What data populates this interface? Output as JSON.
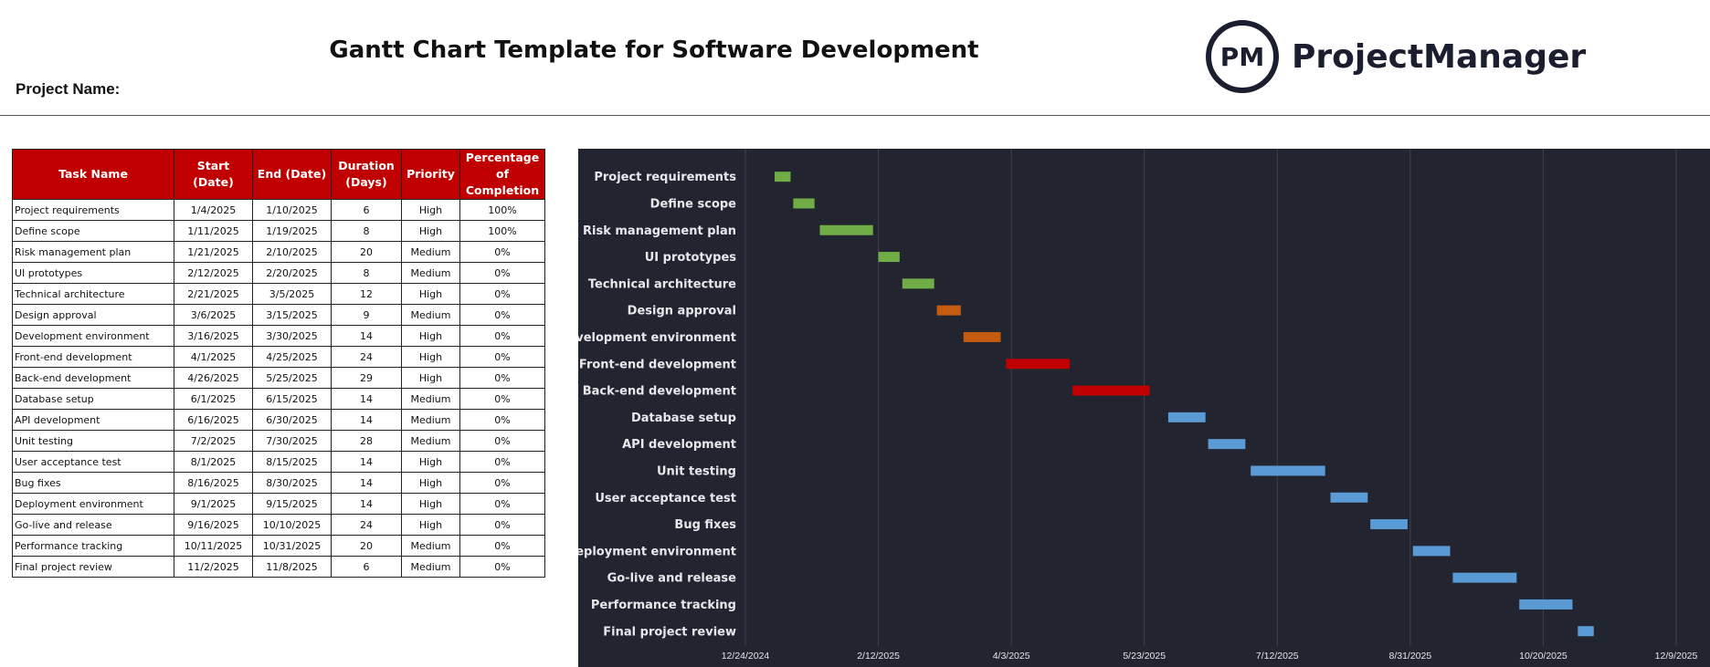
{
  "header": {
    "title": "Gantt Chart Template for Software Development",
    "project_name_label": "Project Name:",
    "logo_mark": "PM",
    "logo_text": "ProjectManager"
  },
  "table": {
    "columns": [
      "Task Name",
      "Start  (Date)",
      "End  (Date)",
      "Duration (Days)",
      "Priority",
      "Percentage of Completion"
    ],
    "rows": [
      [
        "Project requirements",
        "1/4/2025",
        "1/10/2025",
        "6",
        "High",
        "100%"
      ],
      [
        "Define scope",
        "1/11/2025",
        "1/19/2025",
        "8",
        "High",
        "100%"
      ],
      [
        "Risk management plan",
        "1/21/2025",
        "2/10/2025",
        "20",
        "Medium",
        "0%"
      ],
      [
        "UI prototypes",
        "2/12/2025",
        "2/20/2025",
        "8",
        "Medium",
        "0%"
      ],
      [
        "Technical architecture",
        "2/21/2025",
        "3/5/2025",
        "12",
        "High",
        "0%"
      ],
      [
        "Design approval",
        "3/6/2025",
        "3/15/2025",
        "9",
        "Medium",
        "0%"
      ],
      [
        "Development environment",
        "3/16/2025",
        "3/30/2025",
        "14",
        "High",
        "0%"
      ],
      [
        "Front-end development",
        "4/1/2025",
        "4/25/2025",
        "24",
        "High",
        "0%"
      ],
      [
        "Back-end development",
        "4/26/2025",
        "5/25/2025",
        "29",
        "High",
        "0%"
      ],
      [
        "Database setup",
        "6/1/2025",
        "6/15/2025",
        "14",
        "Medium",
        "0%"
      ],
      [
        "API development",
        "6/16/2025",
        "6/30/2025",
        "14",
        "Medium",
        "0%"
      ],
      [
        "Unit testing",
        "7/2/2025",
        "7/30/2025",
        "28",
        "Medium",
        "0%"
      ],
      [
        "User acceptance test",
        "8/1/2025",
        "8/15/2025",
        "14",
        "High",
        "0%"
      ],
      [
        "Bug fixes",
        "8/16/2025",
        "8/30/2025",
        "14",
        "High",
        "0%"
      ],
      [
        "Deployment environment",
        "9/1/2025",
        "9/15/2025",
        "14",
        "High",
        "0%"
      ],
      [
        "Go-live and release",
        "9/16/2025",
        "10/10/2025",
        "24",
        "High",
        "0%"
      ],
      [
        "Performance tracking",
        "10/11/2025",
        "10/31/2025",
        "20",
        "Medium",
        "0%"
      ],
      [
        "Final project review",
        "11/2/2025",
        "11/8/2025",
        "6",
        "Medium",
        "0%"
      ]
    ]
  },
  "chart_data": {
    "type": "gantt",
    "title": "",
    "background": "#22252f",
    "grid": true,
    "x_axis": {
      "min": "2024-12-24",
      "max": "2025-12-09",
      "ticks": [
        "2024-12-24",
        "2025-02-12",
        "2025-04-03",
        "2025-05-23",
        "2025-07-12",
        "2025-08-31",
        "2025-10-20",
        "2025-12-09"
      ],
      "tick_labels": [
        "12/24/2024",
        "2/12/2025",
        "4/3/2025",
        "5/23/2025",
        "7/12/2025",
        "8/31/2025",
        "10/20/2025",
        "12/9/2025"
      ]
    },
    "colors": {
      "green": "#70ad47",
      "orange": "#c55a11",
      "red": "#c00000",
      "blue": "#5b9bd5"
    },
    "tasks": [
      {
        "name": "Project requirements",
        "start": "2025-01-04",
        "duration": 6,
        "color": "green"
      },
      {
        "name": "Define scope",
        "start": "2025-01-11",
        "duration": 8,
        "color": "green"
      },
      {
        "name": "Risk management plan",
        "start": "2025-01-21",
        "duration": 20,
        "color": "green"
      },
      {
        "name": "UI prototypes",
        "start": "2025-02-12",
        "duration": 8,
        "color": "green"
      },
      {
        "name": "Technical architecture",
        "start": "2025-02-21",
        "duration": 12,
        "color": "green"
      },
      {
        "name": "Design approval",
        "start": "2025-03-06",
        "duration": 9,
        "color": "orange"
      },
      {
        "name": "Development environment",
        "start": "2025-03-16",
        "duration": 14,
        "color": "orange"
      },
      {
        "name": "Front-end development",
        "start": "2025-04-01",
        "duration": 24,
        "color": "red"
      },
      {
        "name": "Back-end development",
        "start": "2025-04-26",
        "duration": 29,
        "color": "red"
      },
      {
        "name": "Database setup",
        "start": "2025-06-01",
        "duration": 14,
        "color": "blue"
      },
      {
        "name": "API development",
        "start": "2025-06-16",
        "duration": 14,
        "color": "blue"
      },
      {
        "name": "Unit testing",
        "start": "2025-07-02",
        "duration": 28,
        "color": "blue"
      },
      {
        "name": "User acceptance test",
        "start": "2025-08-01",
        "duration": 14,
        "color": "blue"
      },
      {
        "name": "Bug fixes",
        "start": "2025-08-16",
        "duration": 14,
        "color": "blue"
      },
      {
        "name": "Deployment environment",
        "start": "2025-09-01",
        "duration": 14,
        "color": "blue"
      },
      {
        "name": "Go-live and release",
        "start": "2025-09-16",
        "duration": 24,
        "color": "blue"
      },
      {
        "name": "Performance tracking",
        "start": "2025-10-11",
        "duration": 20,
        "color": "blue"
      },
      {
        "name": "Final project review",
        "start": "2025-11-02",
        "duration": 6,
        "color": "blue"
      }
    ]
  }
}
